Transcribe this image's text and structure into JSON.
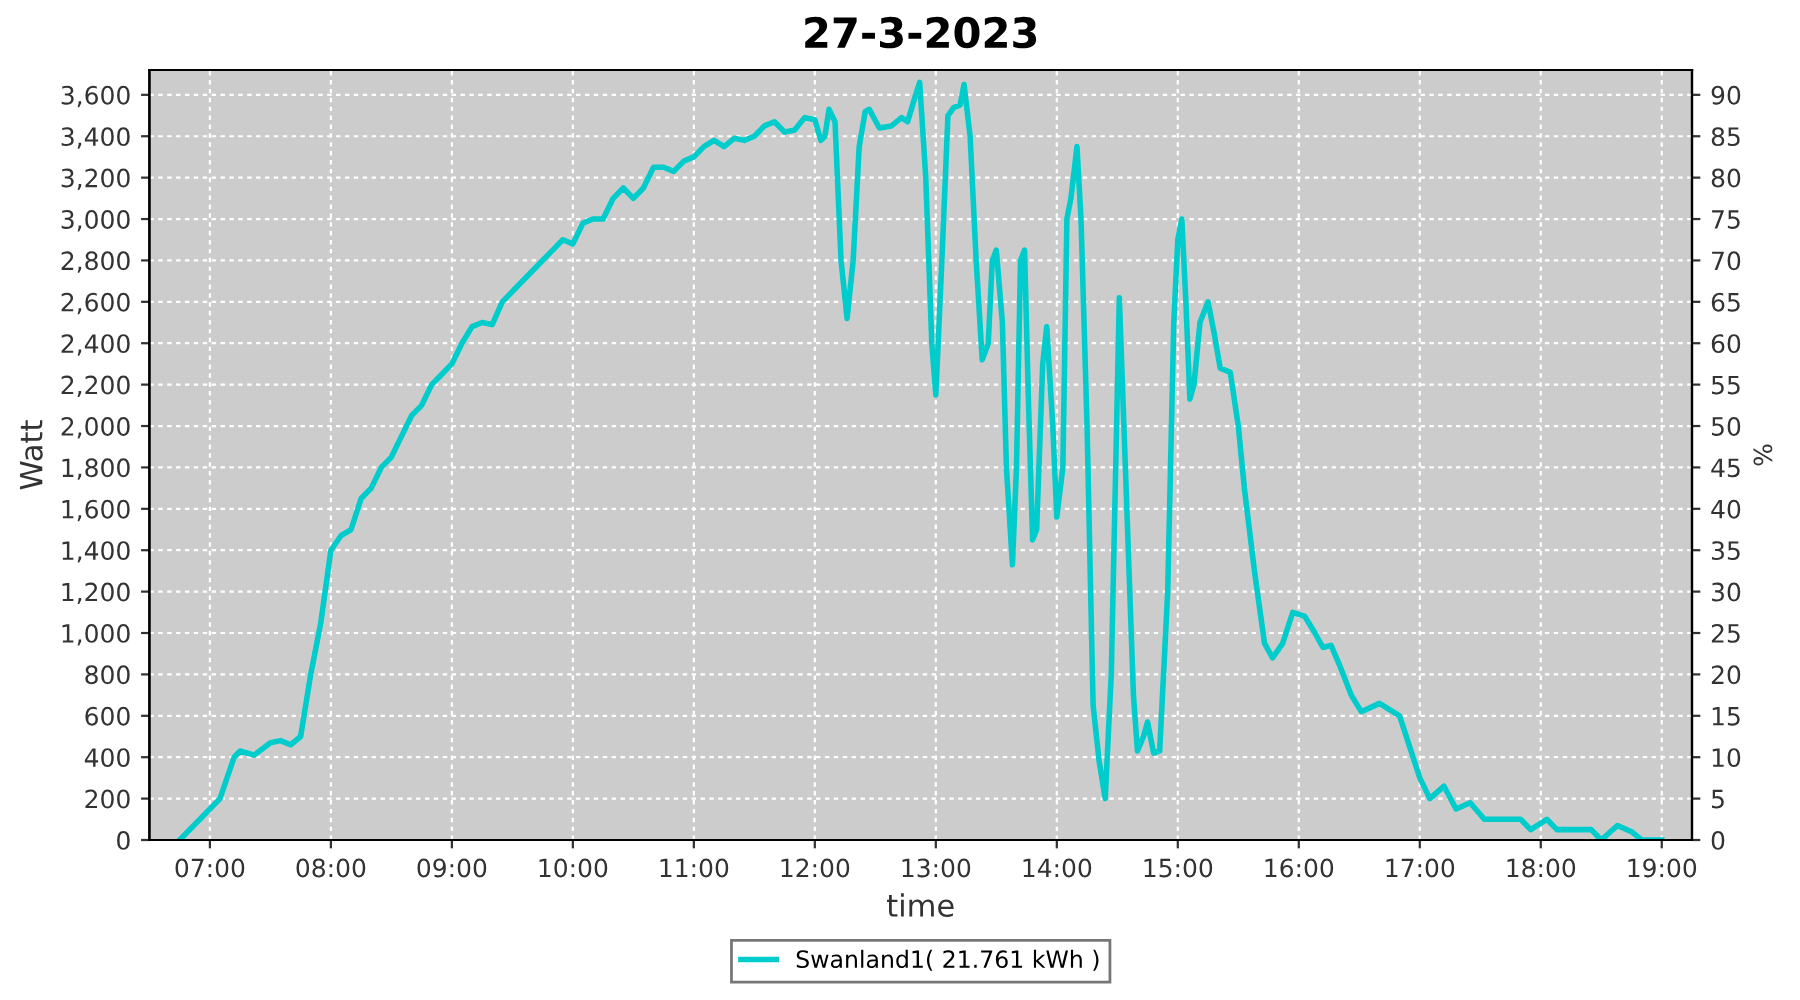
{
  "chart_data": {
    "type": "line",
    "title": "27-3-2023",
    "xlabel": "time",
    "ylabel": "Watt",
    "y2label": "%",
    "grid": true,
    "legend": "bottom",
    "marker": "none",
    "line_style": "solid",
    "xlim": [
      "2023-03-27T06:30",
      "2023-03-27T19:15"
    ],
    "xticks": [
      {
        "value": "2023-03-27T07:00",
        "label": "07:00"
      },
      {
        "value": "2023-03-27T08:00",
        "label": "08:00"
      },
      {
        "value": "2023-03-27T09:00",
        "label": "09:00"
      },
      {
        "value": "2023-03-27T10:00",
        "label": "10:00"
      },
      {
        "value": "2023-03-27T11:00",
        "label": "11:00"
      },
      {
        "value": "2023-03-27T12:00",
        "label": "12:00"
      },
      {
        "value": "2023-03-27T13:00",
        "label": "13:00"
      },
      {
        "value": "2023-03-27T14:00",
        "label": "14:00"
      },
      {
        "value": "2023-03-27T15:00",
        "label": "15:00"
      },
      {
        "value": "2023-03-27T16:00",
        "label": "16:00"
      },
      {
        "value": "2023-03-27T17:00",
        "label": "17:00"
      },
      {
        "value": "2023-03-27T18:00",
        "label": "18:00"
      },
      {
        "value": "2023-03-27T19:00",
        "label": "19:00"
      }
    ],
    "ylim": [
      0,
      3720
    ],
    "yticks": [
      0,
      200,
      400,
      600,
      800,
      {
        "value": 1000,
        "label": "1,000"
      },
      {
        "value": 1200,
        "label": "1,200"
      },
      {
        "value": 1400,
        "label": "1,400"
      },
      {
        "value": 1600,
        "label": "1,600"
      },
      {
        "value": 1800,
        "label": "1,800"
      },
      {
        "value": 2000,
        "label": "2,000"
      },
      {
        "value": 2200,
        "label": "2,200"
      },
      {
        "value": 2400,
        "label": "2,400"
      },
      {
        "value": 2600,
        "label": "2,600"
      },
      {
        "value": 2800,
        "label": "2,800"
      },
      {
        "value": 3000,
        "label": "3,000"
      },
      {
        "value": 3200,
        "label": "3,200"
      },
      {
        "value": 3400,
        "label": "3,400"
      },
      {
        "value": 3600,
        "label": "3,600"
      }
    ],
    "y2lim": [
      0,
      93
    ],
    "y2ticks": [
      0,
      5,
      10,
      15,
      20,
      25,
      30,
      35,
      40,
      45,
      50,
      55,
      60,
      65,
      70,
      75,
      80,
      85,
      90
    ],
    "series": [
      {
        "name": "Swanland1( 21.761 kWh )",
        "color": "#00cccc",
        "x": [
          "2023-03-27T06:45",
          "2023-03-27T07:00",
          "2023-03-27T07:05",
          "2023-03-27T07:12",
          "2023-03-27T07:15",
          "2023-03-27T07:22",
          "2023-03-27T07:30",
          "2023-03-27T07:35",
          "2023-03-27T07:40",
          "2023-03-27T07:45",
          "2023-03-27T07:50",
          "2023-03-27T07:55",
          "2023-03-27T08:00",
          "2023-03-27T08:05",
          "2023-03-27T08:10",
          "2023-03-27T08:15",
          "2023-03-27T08:20",
          "2023-03-27T08:25",
          "2023-03-27T08:30",
          "2023-03-27T08:35",
          "2023-03-27T08:40",
          "2023-03-27T08:45",
          "2023-03-27T08:50",
          "2023-03-27T08:55",
          "2023-03-27T09:00",
          "2023-03-27T09:05",
          "2023-03-27T09:10",
          "2023-03-27T09:15",
          "2023-03-27T09:20",
          "2023-03-27T09:25",
          "2023-03-27T09:30",
          "2023-03-27T09:40",
          "2023-03-27T09:50",
          "2023-03-27T09:55",
          "2023-03-27T10:00",
          "2023-03-27T10:05",
          "2023-03-27T10:10",
          "2023-03-27T10:15",
          "2023-03-27T10:20",
          "2023-03-27T10:25",
          "2023-03-27T10:30",
          "2023-03-27T10:35",
          "2023-03-27T10:40",
          "2023-03-27T10:45",
          "2023-03-27T10:50",
          "2023-03-27T10:55",
          "2023-03-27T11:00",
          "2023-03-27T11:05",
          "2023-03-27T11:10",
          "2023-03-27T11:15",
          "2023-03-27T11:20",
          "2023-03-27T11:25",
          "2023-03-27T11:30",
          "2023-03-27T11:35",
          "2023-03-27T11:40",
          "2023-03-27T11:45",
          "2023-03-27T11:50",
          "2023-03-27T11:55",
          "2023-03-27T12:00",
          "2023-03-27T12:03",
          "2023-03-27T12:05",
          "2023-03-27T12:07",
          "2023-03-27T12:10",
          "2023-03-27T12:13",
          "2023-03-27T12:16",
          "2023-03-27T12:19",
          "2023-03-27T12:22",
          "2023-03-27T12:25",
          "2023-03-27T12:27",
          "2023-03-27T12:32",
          "2023-03-27T12:38",
          "2023-03-27T12:43",
          "2023-03-27T12:46",
          "2023-03-27T12:50",
          "2023-03-27T12:52",
          "2023-03-27T12:55",
          "2023-03-27T12:58",
          "2023-03-27T13:00",
          "2023-03-27T13:03",
          "2023-03-27T13:06",
          "2023-03-27T13:09",
          "2023-03-27T13:12",
          "2023-03-27T13:14",
          "2023-03-27T13:17",
          "2023-03-27T13:20",
          "2023-03-27T13:23",
          "2023-03-27T13:26",
          "2023-03-27T13:28",
          "2023-03-27T13:30",
          "2023-03-27T13:33",
          "2023-03-27T13:35",
          "2023-03-27T13:38",
          "2023-03-27T13:40",
          "2023-03-27T13:42",
          "2023-03-27T13:44",
          "2023-03-27T13:46",
          "2023-03-27T13:48",
          "2023-03-27T13:50",
          "2023-03-27T13:53",
          "2023-03-27T13:55",
          "2023-03-27T13:58",
          "2023-03-27T14:00",
          "2023-03-27T14:03",
          "2023-03-27T14:05",
          "2023-03-27T14:07",
          "2023-03-27T14:10",
          "2023-03-27T14:12",
          "2023-03-27T14:15",
          "2023-03-27T14:18",
          "2023-03-27T14:21",
          "2023-03-27T14:24",
          "2023-03-27T14:27",
          "2023-03-27T14:31",
          "2023-03-27T14:34",
          "2023-03-27T14:38",
          "2023-03-27T14:40",
          "2023-03-27T14:43",
          "2023-03-27T14:45",
          "2023-03-27T14:48",
          "2023-03-27T14:51",
          "2023-03-27T14:55",
          "2023-03-27T14:58",
          "2023-03-27T15:00",
          "2023-03-27T15:02",
          "2023-03-27T15:04",
          "2023-03-27T15:06",
          "2023-03-27T15:08",
          "2023-03-27T15:11",
          "2023-03-27T15:15",
          "2023-03-27T15:18",
          "2023-03-27T15:21",
          "2023-03-27T15:26",
          "2023-03-27T15:30",
          "2023-03-27T15:33",
          "2023-03-27T15:38",
          "2023-03-27T15:43",
          "2023-03-27T15:47",
          "2023-03-27T15:52",
          "2023-03-27T15:57",
          "2023-03-27T16:03",
          "2023-03-27T16:08",
          "2023-03-27T16:12",
          "2023-03-27T16:16",
          "2023-03-27T16:20",
          "2023-03-27T16:26",
          "2023-03-27T16:31",
          "2023-03-27T16:40",
          "2023-03-27T16:50",
          "2023-03-27T16:55",
          "2023-03-27T17:00",
          "2023-03-27T17:05",
          "2023-03-27T17:12",
          "2023-03-27T17:18",
          "2023-03-27T17:25",
          "2023-03-27T17:32",
          "2023-03-27T17:40",
          "2023-03-27T17:50",
          "2023-03-27T17:55",
          "2023-03-27T18:03",
          "2023-03-27T18:08",
          "2023-03-27T18:20",
          "2023-03-27T18:25",
          "2023-03-27T18:30",
          "2023-03-27T18:38",
          "2023-03-27T18:45",
          "2023-03-27T18:50",
          "2023-03-27T19:00"
        ],
        "values": [
          0,
          150,
          200,
          400,
          430,
          410,
          470,
          480,
          460,
          500,
          800,
          1050,
          1400,
          1470,
          1500,
          1650,
          1700,
          1800,
          1850,
          1950,
          2050,
          2100,
          2200,
          2250,
          2300,
          2400,
          2480,
          2500,
          2490,
          2600,
          2650,
          2750,
          2850,
          2900,
          2880,
          2980,
          3000,
          3000,
          3100,
          3150,
          3100,
          3150,
          3250,
          3250,
          3230,
          3280,
          3300,
          3350,
          3380,
          3350,
          3390,
          3380,
          3400,
          3450,
          3470,
          3420,
          3430,
          3490,
          3480,
          3380,
          3400,
          3530,
          3470,
          2800,
          2520,
          2800,
          3350,
          3520,
          3530,
          3440,
          3450,
          3490,
          3470,
          3600,
          3660,
          3200,
          2400,
          2150,
          2800,
          3500,
          3540,
          3550,
          3650,
          3400,
          2800,
          2320,
          2400,
          2800,
          2850,
          2500,
          1800,
          1330,
          1800,
          2800,
          2850,
          2100,
          1450,
          1500,
          2300,
          2480,
          2000,
          1560,
          1800,
          3000,
          3100,
          3350,
          3000,
          2000,
          650,
          380,
          200,
          800,
          2620,
          1800,
          700,
          430,
          500,
          570,
          420,
          430,
          1200,
          2500,
          2900,
          3000,
          2600,
          2130,
          2200,
          2500,
          2600,
          2450,
          2280,
          2260,
          2000,
          1700,
          1300,
          950,
          880,
          950,
          1100,
          1080,
          1000,
          930,
          940,
          850,
          700,
          620,
          660,
          600,
          450,
          300,
          200,
          260,
          150,
          180,
          100,
          100,
          100,
          50,
          100,
          50,
          50,
          50,
          0,
          70,
          40,
          0,
          0
        ]
      }
    ]
  }
}
